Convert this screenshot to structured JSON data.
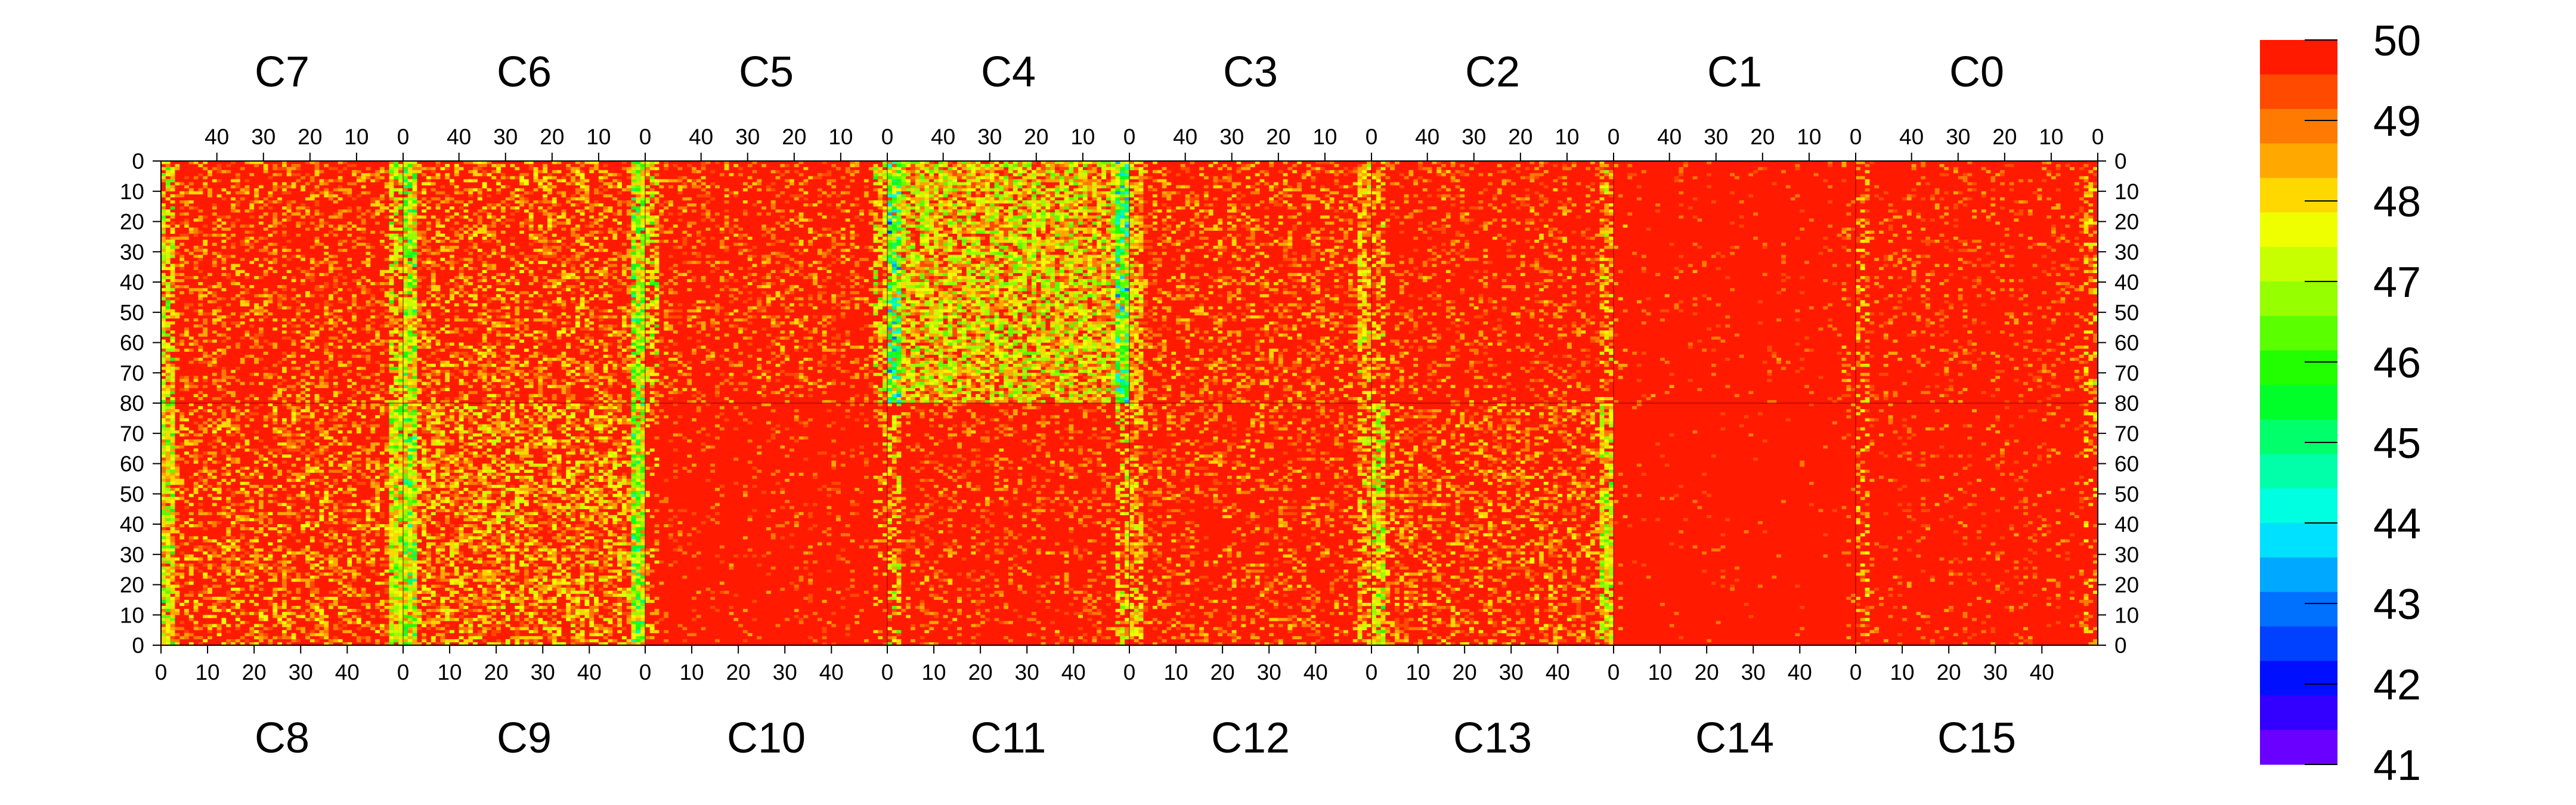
{
  "chart_data": {
    "type": "heatmap",
    "top_chip_labels": [
      "C7",
      "C6",
      "C5",
      "C4",
      "C3",
      "C2",
      "C1",
      "C0"
    ],
    "bottom_chip_labels": [
      "C8",
      "C9",
      "C10",
      "C11",
      "C12",
      "C13",
      "C14",
      "C15"
    ],
    "top_x_ticks": [
      "40",
      "30",
      "20",
      "10",
      "0"
    ],
    "bottom_x_ticks": [
      "0",
      "10",
      "20",
      "30",
      "40"
    ],
    "top_y_ticks": [
      "0",
      "10",
      "20",
      "30",
      "40",
      "50",
      "60",
      "70",
      "80"
    ],
    "bottom_y_ticks": [
      "70",
      "60",
      "50",
      "40",
      "30",
      "20",
      "10",
      "0"
    ],
    "columns_per_chip": 52,
    "rows_per_half": 80,
    "colorbar": {
      "min": 41,
      "max": 50,
      "labels": [
        "50",
        "49",
        "48",
        "47",
        "46",
        "45",
        "44",
        "43",
        "42",
        "41"
      ],
      "colors": [
        "#ff1a00",
        "#ff4a00",
        "#ff7a00",
        "#ffa800",
        "#ffd800",
        "#f0ff00",
        "#c8ff00",
        "#96ff00",
        "#5aff00",
        "#22ff00",
        "#00ff28",
        "#00ff6a",
        "#00ffa8",
        "#00ffe0",
        "#00e0ff",
        "#00a8ff",
        "#0070ff",
        "#0040ff",
        "#0010ff",
        "#3300ff",
        "#6a00ff"
      ]
    },
    "chip_level_summary": [
      {
        "chip": "C0",
        "typical_value": 49.7,
        "edge_column_spread": 2
      },
      {
        "chip": "C1",
        "typical_value": 49.9,
        "edge_column_spread": 1
      },
      {
        "chip": "C2",
        "typical_value": 49.6,
        "edge_column_spread": 2
      },
      {
        "chip": "C3",
        "typical_value": 49.4,
        "edge_column_spread": 2
      },
      {
        "chip": "C4",
        "typical_value": 48.3,
        "edge_column_spread": 5
      },
      {
        "chip": "C5",
        "typical_value": 49.5,
        "edge_column_spread": 3
      },
      {
        "chip": "C6",
        "typical_value": 49.2,
        "edge_column_spread": 4
      },
      {
        "chip": "C7",
        "typical_value": 49.4,
        "edge_column_spread": 3
      },
      {
        "chip": "C8",
        "typical_value": 49.2,
        "edge_column_spread": 3
      },
      {
        "chip": "C9",
        "typical_value": 48.9,
        "edge_column_spread": 4
      },
      {
        "chip": "C10",
        "typical_value": 49.8,
        "edge_column_spread": 2
      },
      {
        "chip": "C11",
        "typical_value": 49.6,
        "edge_column_spread": 3
      },
      {
        "chip": "C12",
        "typical_value": 49.5,
        "edge_column_spread": 2
      },
      {
        "chip": "C13",
        "typical_value": 49.3,
        "edge_column_spread": 3
      },
      {
        "chip": "C14",
        "typical_value": 49.95,
        "edge_column_spread": 1
      },
      {
        "chip": "C15",
        "typical_value": 49.8,
        "edge_column_spread": 2
      }
    ]
  }
}
